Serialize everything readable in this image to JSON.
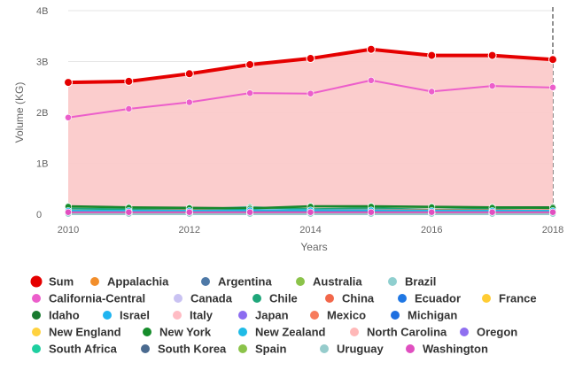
{
  "chart_data": {
    "type": "line",
    "xlabel": "Years",
    "ylabel": "Volume (KG)",
    "x": [
      2010,
      2011,
      2012,
      2013,
      2014,
      2015,
      2016,
      2017,
      2018
    ],
    "x_ticks": [
      "2010",
      "2012",
      "2014",
      "2016",
      "2018"
    ],
    "y_ticks": [
      "0",
      "1B",
      "2B",
      "3B",
      "4B"
    ],
    "ylim": [
      0,
      4000000000
    ],
    "grid": true,
    "legend_position": "bottom",
    "series": [
      {
        "name": "Sum",
        "color": "#e50000",
        "emphasis": true,
        "area": true,
        "values": [
          2590000000,
          2610000000,
          2760000000,
          2940000000,
          3060000000,
          3240000000,
          3120000000,
          3120000000,
          3040000000
        ]
      },
      {
        "name": "Appalachia",
        "color": "#f28e2b",
        "values": [
          20000000,
          20000000,
          20000000,
          20000000,
          30000000,
          20000000,
          20000000,
          20000000,
          20000000
        ]
      },
      {
        "name": "Argentina",
        "color": "#4e79a7",
        "values": [
          10000000,
          10000000,
          10000000,
          10000000,
          10000000,
          10000000,
          10000000,
          10000000,
          10000000
        ]
      },
      {
        "name": "Australia",
        "color": "#8bc34a",
        "values": [
          20000000,
          20000000,
          20000000,
          30000000,
          30000000,
          30000000,
          30000000,
          30000000,
          30000000
        ]
      },
      {
        "name": "Brazil",
        "color": "#8fcfcf",
        "values": [
          20000000,
          20000000,
          20000000,
          20000000,
          20000000,
          20000000,
          20000000,
          20000000,
          20000000
        ]
      },
      {
        "name": "California-Central",
        "color": "#ec5ecb",
        "values": [
          1900000000,
          2070000000,
          2200000000,
          2380000000,
          2370000000,
          2630000000,
          2410000000,
          2520000000,
          2490000000
        ]
      },
      {
        "name": "Canada",
        "color": "#c9c2f2",
        "values": [
          30000000,
          30000000,
          30000000,
          30000000,
          30000000,
          30000000,
          30000000,
          30000000,
          30000000
        ]
      },
      {
        "name": "Chile",
        "color": "#1fa67a",
        "values": [
          110000000,
          100000000,
          100000000,
          140000000,
          100000000,
          120000000,
          90000000,
          110000000,
          130000000
        ]
      },
      {
        "name": "China",
        "color": "#f2674a",
        "values": [
          10000000,
          10000000,
          10000000,
          10000000,
          10000000,
          10000000,
          10000000,
          10000000,
          10000000
        ]
      },
      {
        "name": "Ecuador",
        "color": "#1f77e4",
        "values": [
          20000000,
          20000000,
          20000000,
          20000000,
          20000000,
          20000000,
          20000000,
          20000000,
          20000000
        ]
      },
      {
        "name": "France",
        "color": "#ffcc33",
        "values": [
          10000000,
          10000000,
          10000000,
          10000000,
          10000000,
          10000000,
          10000000,
          10000000,
          10000000
        ]
      },
      {
        "name": "Idaho",
        "color": "#187a2f",
        "values": [
          160000000,
          140000000,
          130000000,
          120000000,
          160000000,
          160000000,
          150000000,
          140000000,
          140000000
        ]
      },
      {
        "name": "Israel",
        "color": "#1fb4f0",
        "values": [
          20000000,
          20000000,
          20000000,
          20000000,
          20000000,
          20000000,
          20000000,
          20000000,
          20000000
        ]
      },
      {
        "name": "Italy",
        "color": "#ffbcc4",
        "values": [
          10000000,
          10000000,
          10000000,
          10000000,
          10000000,
          10000000,
          10000000,
          10000000,
          10000000
        ]
      },
      {
        "name": "Japan",
        "color": "#8c6cf0",
        "values": [
          10000000,
          10000000,
          10000000,
          10000000,
          10000000,
          10000000,
          10000000,
          10000000,
          10000000
        ]
      },
      {
        "name": "Mexico",
        "color": "#f77b5c",
        "values": [
          70000000,
          70000000,
          80000000,
          80000000,
          80000000,
          90000000,
          80000000,
          80000000,
          80000000
        ]
      },
      {
        "name": "Michigan",
        "color": "#1e6fe0",
        "values": [
          50000000,
          50000000,
          60000000,
          60000000,
          60000000,
          60000000,
          60000000,
          60000000,
          60000000
        ]
      },
      {
        "name": "New England",
        "color": "#ffd23f",
        "values": [
          20000000,
          20000000,
          20000000,
          20000000,
          20000000,
          20000000,
          20000000,
          20000000,
          20000000
        ]
      },
      {
        "name": "New York",
        "color": "#168c2b",
        "values": [
          150000000,
          130000000,
          120000000,
          110000000,
          150000000,
          150000000,
          140000000,
          130000000,
          120000000
        ]
      },
      {
        "name": "New Zealand",
        "color": "#1fbbe6",
        "values": [
          70000000,
          70000000,
          70000000,
          80000000,
          80000000,
          80000000,
          70000000,
          70000000,
          70000000
        ]
      },
      {
        "name": "North Carolina",
        "color": "#ffb8b8",
        "values": [
          20000000,
          20000000,
          20000000,
          20000000,
          20000000,
          20000000,
          20000000,
          20000000,
          20000000
        ]
      },
      {
        "name": "Oregon",
        "color": "#8f6ff0",
        "values": [
          30000000,
          30000000,
          30000000,
          30000000,
          30000000,
          30000000,
          30000000,
          30000000,
          30000000
        ]
      },
      {
        "name": "South Africa",
        "color": "#1fcfa0",
        "values": [
          40000000,
          40000000,
          40000000,
          40000000,
          40000000,
          40000000,
          40000000,
          40000000,
          40000000
        ]
      },
      {
        "name": "South Korea",
        "color": "#4a6a8f",
        "values": [
          5000000,
          5000000,
          5000000,
          5000000,
          5000000,
          5000000,
          5000000,
          5000000,
          5000000
        ]
      },
      {
        "name": "Spain",
        "color": "#8bc34a",
        "values": [
          10000000,
          10000000,
          10000000,
          10000000,
          10000000,
          10000000,
          10000000,
          10000000,
          10000000
        ]
      },
      {
        "name": "Uruguay",
        "color": "#96cccc",
        "values": [
          5000000,
          5000000,
          5000000,
          5000000,
          5000000,
          5000000,
          5000000,
          5000000,
          5000000
        ]
      },
      {
        "name": "Washington",
        "color": "#e04fc0",
        "values": [
          40000000,
          40000000,
          40000000,
          40000000,
          40000000,
          40000000,
          40000000,
          40000000,
          40000000
        ]
      }
    ]
  }
}
